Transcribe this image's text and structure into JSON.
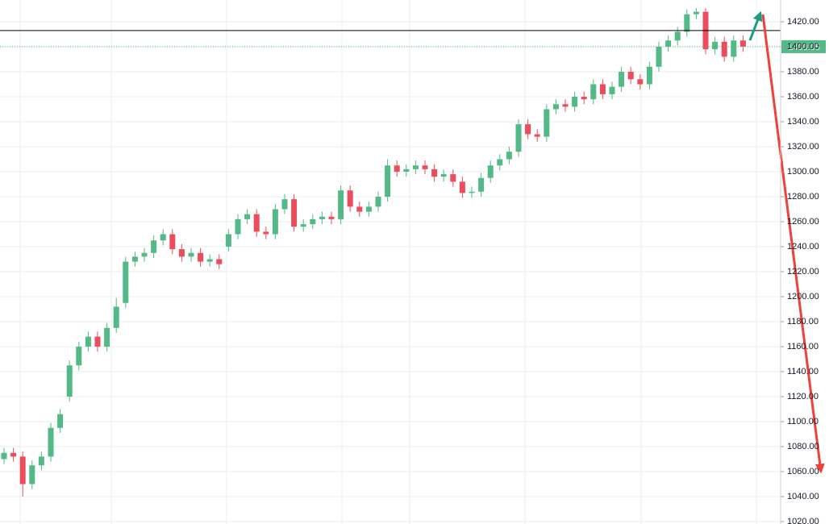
{
  "chart_data": {
    "type": "candlestick",
    "up_color": "#53b987",
    "down_color": "#eb4d5c",
    "grid": true,
    "open": [
      1070,
      1075,
      1072,
      1050,
      1065,
      1072,
      1095,
      1120,
      1145,
      1160,
      1168,
      1160,
      1175,
      1195,
      1228,
      1232,
      1235,
      1245,
      1250,
      1238,
      1232,
      1235,
      1228,
      1230,
      1240,
      1250,
      1262,
      1266,
      1252,
      1250,
      1270,
      1278,
      1256,
      1258,
      1262,
      1264,
      1262,
      1285,
      1272,
      1268,
      1272,
      1280,
      1305,
      1300,
      1302,
      1305,
      1302,
      1296,
      1298,
      1292,
      1283,
      1284,
      1295,
      1305,
      1310,
      1316,
      1338,
      1330,
      1328,
      1350,
      1354,
      1352,
      1360,
      1358,
      1370,
      1362,
      1368,
      1380,
      1374,
      1370,
      1384,
      1400,
      1405,
      1412,
      1426,
      1428,
      1398,
      1404,
      1392,
      1405
    ],
    "high": [
      1079,
      1079,
      1076,
      1069,
      1076,
      1099,
      1110,
      1149,
      1164,
      1172,
      1172,
      1179,
      1199,
      1232,
      1236,
      1239,
      1249,
      1254,
      1254,
      1242,
      1239,
      1239,
      1234,
      1234,
      1254,
      1266,
      1270,
      1270,
      1256,
      1274,
      1282,
      1282,
      1262,
      1266,
      1268,
      1268,
      1289,
      1289,
      1276,
      1276,
      1284,
      1310,
      1309,
      1306,
      1309,
      1309,
      1306,
      1302,
      1302,
      1296,
      1288,
      1299,
      1309,
      1314,
      1320,
      1342,
      1342,
      1334,
      1354,
      1358,
      1358,
      1364,
      1364,
      1374,
      1374,
      1372,
      1384,
      1384,
      1378,
      1388,
      1404,
      1409,
      1416,
      1430,
      1431,
      1431,
      1408,
      1408,
      1409,
      1409
    ],
    "low": [
      1066,
      1068,
      1040,
      1046,
      1061,
      1068,
      1091,
      1116,
      1141,
      1156,
      1156,
      1156,
      1171,
      1191,
      1224,
      1228,
      1231,
      1241,
      1234,
      1228,
      1228,
      1224,
      1224,
      1222,
      1236,
      1246,
      1258,
      1248,
      1246,
      1246,
      1266,
      1252,
      1252,
      1254,
      1258,
      1258,
      1258,
      1268,
      1264,
      1264,
      1268,
      1276,
      1296,
      1296,
      1298,
      1298,
      1292,
      1292,
      1288,
      1279,
      1279,
      1280,
      1291,
      1301,
      1306,
      1312,
      1326,
      1324,
      1324,
      1346,
      1348,
      1348,
      1354,
      1354,
      1358,
      1358,
      1364,
      1370,
      1366,
      1366,
      1380,
      1396,
      1401,
      1408,
      1422,
      1394,
      1394,
      1388,
      1388,
      1396
    ],
    "close": [
      1075,
      1072,
      1050,
      1065,
      1072,
      1095,
      1106,
      1145,
      1160,
      1168,
      1160,
      1175,
      1192,
      1228,
      1232,
      1235,
      1245,
      1250,
      1238,
      1232,
      1235,
      1228,
      1230,
      1226,
      1250,
      1262,
      1266,
      1252,
      1250,
      1270,
      1278,
      1256,
      1258,
      1262,
      1264,
      1262,
      1285,
      1272,
      1268,
      1272,
      1280,
      1305,
      1300,
      1302,
      1305,
      1302,
      1296,
      1298,
      1292,
      1283,
      1284,
      1295,
      1305,
      1310,
      1316,
      1338,
      1330,
      1328,
      1350,
      1354,
      1352,
      1360,
      1358,
      1370,
      1362,
      1368,
      1380,
      1374,
      1370,
      1384,
      1400,
      1405,
      1412,
      1426,
      1428,
      1398,
      1404,
      1392,
      1405,
      1400.05
    ],
    "hline": 1413,
    "ylim": [
      1020,
      1420
    ],
    "yticks": [
      {
        "value": 1020,
        "label": "1020.00"
      },
      {
        "value": 1040,
        "label": "1040.00"
      },
      {
        "value": 1060,
        "label": "1060.00"
      },
      {
        "value": 1080,
        "label": "1080.00"
      },
      {
        "value": 1100,
        "label": "1100.00"
      },
      {
        "value": 1120,
        "label": "1120.00"
      },
      {
        "value": 1140,
        "label": "1140.00"
      },
      {
        "value": 1160,
        "label": "1160.00"
      },
      {
        "value": 1180,
        "label": "1180.00"
      },
      {
        "value": 1200,
        "label": "1200.00"
      },
      {
        "value": 1220,
        "label": "1220.00"
      },
      {
        "value": 1240,
        "label": "1240.00"
      },
      {
        "value": 1260,
        "label": "1260.00"
      },
      {
        "value": 1280,
        "label": "1280.00"
      },
      {
        "value": 1300,
        "label": "1300.00"
      },
      {
        "value": 1320,
        "label": "1320.00"
      },
      {
        "value": 1340,
        "label": "1340.00"
      },
      {
        "value": 1360,
        "label": "1360.00"
      },
      {
        "value": 1380,
        "label": "1380.00"
      },
      {
        "value": 1400,
        "label": "1400.00"
      },
      {
        "value": 1420,
        "label": "1420.00"
      }
    ]
  }
}
